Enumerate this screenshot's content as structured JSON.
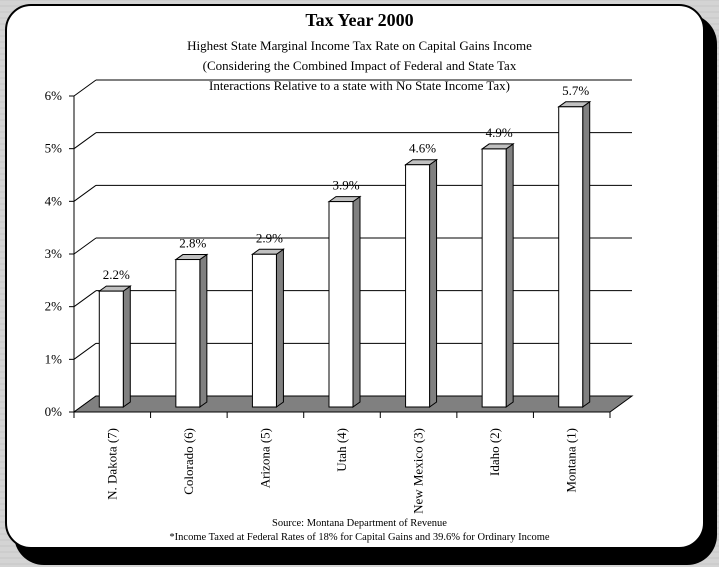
{
  "chart_data": {
    "type": "bar",
    "title": "Tax Year 2000",
    "subtitle_lines": [
      "Highest State Marginal Income Tax Rate on Capital Gains Income",
      "(Considering the Combined Impact of Federal and State Tax",
      "Interactions Relative to a state with No State Income Tax)"
    ],
    "categories": [
      "N. Dakota (7)",
      "Colorado (6)",
      "Arizona (5)",
      "Utah (4)",
      "New Mexico (3)",
      "Idaho (2)",
      "Montana (1)"
    ],
    "values": [
      2.2,
      2.8,
      2.9,
      3.9,
      4.6,
      4.9,
      5.7
    ],
    "data_labels": [
      "2.2%",
      "2.8%",
      "2.9%",
      "3.9%",
      "4.6%",
      "4.9%",
      "5.7%"
    ],
    "y_ticks": [
      "0%",
      "1%",
      "2%",
      "3%",
      "4%",
      "5%",
      "6%"
    ],
    "ylim": [
      0,
      6
    ],
    "grid": true,
    "legend": "none",
    "source": "Source:  Montana Department of Revenue",
    "footnote": "*Income Taxed at Federal Rates of 18% for Capital Gains and 39.6% for Ordinary Income",
    "colors": {
      "bar_front": "#ffffff",
      "bar_side": "#808080",
      "bar_top": "#c0c0c0",
      "floor": "#808080",
      "shadow": "#000000"
    }
  }
}
